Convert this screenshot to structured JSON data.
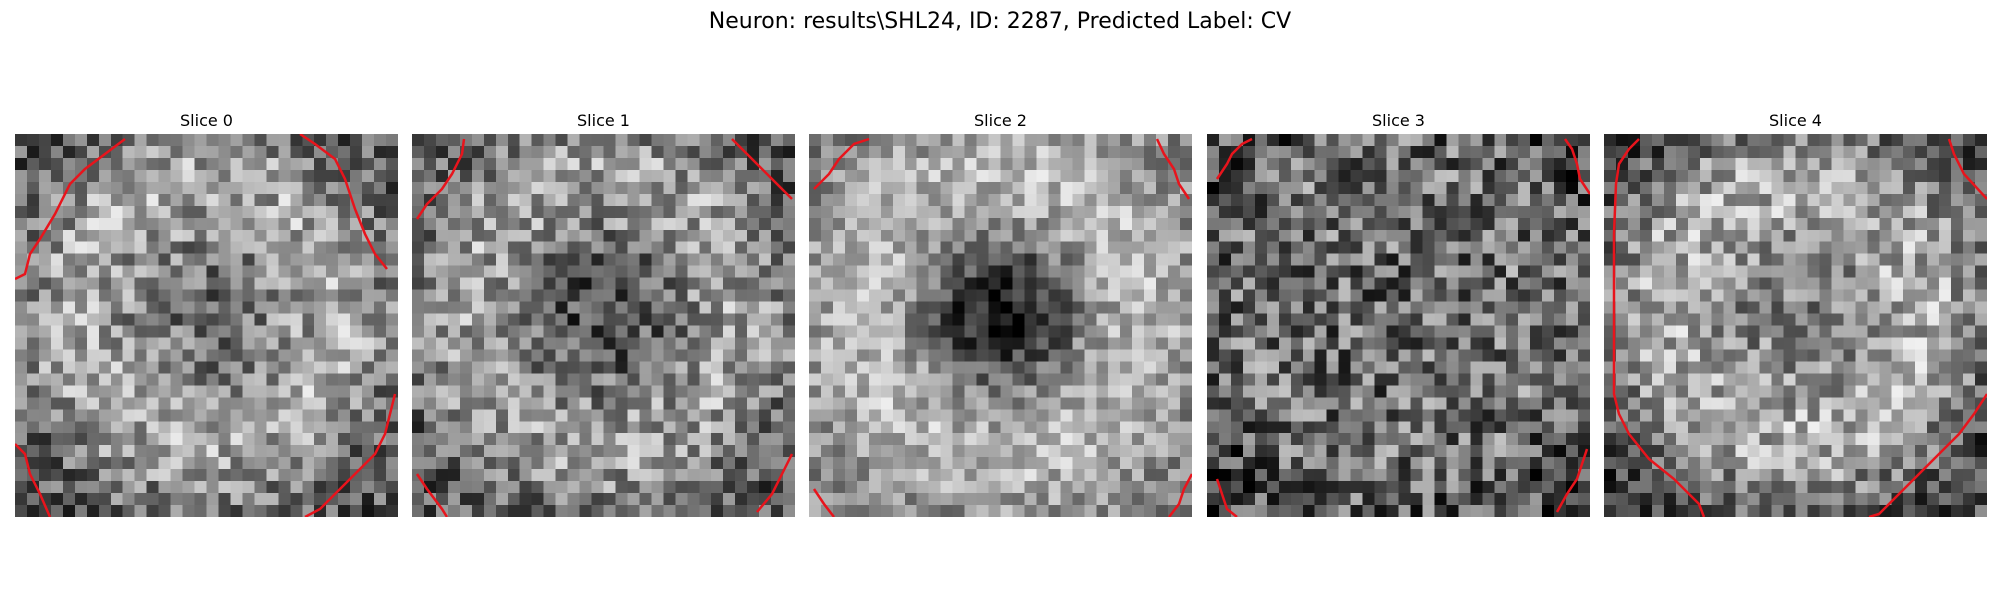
{
  "figure": {
    "title": "Neuron: results\\SHL24, ID: 2287, Predicted Label: CV"
  },
  "contour_color": "#e8141c",
  "colormap": "gray",
  "slices": [
    {
      "title": "Slice 0"
    },
    {
      "title": "Slice 1"
    },
    {
      "title": "Slice 2"
    },
    {
      "title": "Slice 3"
    },
    {
      "title": "Slice 4"
    }
  ]
}
